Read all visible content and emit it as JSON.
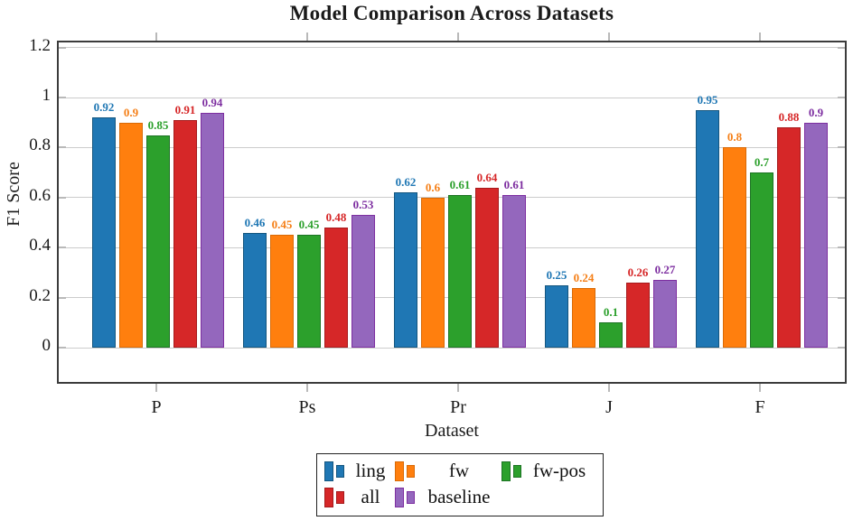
{
  "title": "Model Comparison Across Datasets",
  "chart_data": {
    "type": "bar",
    "title": "Model Comparison Across Datasets",
    "xlabel": "Dataset",
    "ylabel": "F1 Score",
    "categories": [
      "P",
      "Ps",
      "Pr",
      "J",
      "F"
    ],
    "series": [
      {
        "name": "ling",
        "color": "#1f77b4",
        "edge": "#14567f",
        "label_color": "#1f77b4",
        "values": [
          0.92,
          0.46,
          0.62,
          0.25,
          0.95
        ]
      },
      {
        "name": "fw",
        "color": "#ff7f0e",
        "edge": "#d96a06",
        "label_color": "#f57f17",
        "values": [
          0.9,
          0.45,
          0.6,
          0.24,
          0.8
        ]
      },
      {
        "name": "fw-pos",
        "color": "#2ca02c",
        "edge": "#1d7324",
        "label_color": "#2ca02c",
        "values": [
          0.85,
          0.45,
          0.61,
          0.1,
          0.7
        ]
      },
      {
        "name": "all",
        "color": "#d62728",
        "edge": "#a61a1c",
        "label_color": "#d62728",
        "values": [
          0.91,
          0.48,
          0.64,
          0.26,
          0.88
        ]
      },
      {
        "name": "baseline",
        "color": "#9467bd",
        "edge": "#7d2ea0",
        "label_color": "#7d2ea0",
        "values": [
          0.94,
          0.53,
          0.61,
          0.27,
          0.9
        ]
      }
    ],
    "yticks": [
      0,
      0.2,
      0.4,
      0.6,
      0.8,
      1,
      1.2
    ],
    "ylim": [
      -0.15,
      1.25
    ],
    "grid": true,
    "bar_labels": true,
    "legend_position": "below",
    "legend_rows": [
      [
        "ling",
        "fw",
        "fw-pos"
      ],
      [
        "all",
        "baseline"
      ]
    ]
  }
}
